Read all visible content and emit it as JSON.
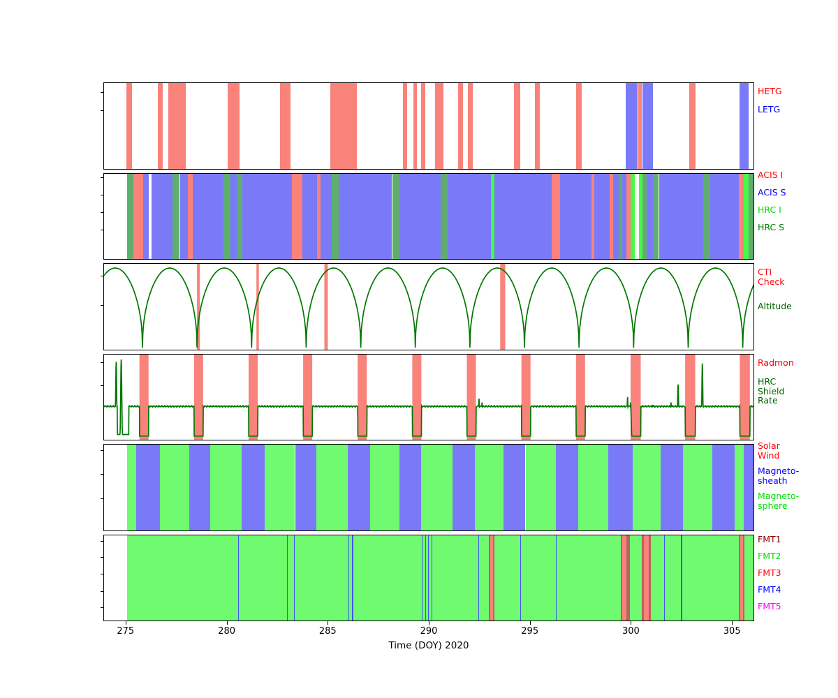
{
  "figure": {
    "xlabel": "Time (DOY) 2020",
    "x_ticks": [
      275,
      280,
      285,
      290,
      295,
      300,
      305
    ],
    "x_range": [
      273.9,
      306.1
    ]
  },
  "chart_data": [
    {
      "type": "area",
      "name": "gratings",
      "legend": [
        {
          "label": "HETG",
          "color": "#ff0000"
        },
        {
          "label": "LETG",
          "color": "#0000ff"
        }
      ],
      "band_colors": {
        "HETG": "#f9827b",
        "LETG": "#7a7af8"
      },
      "bands": [
        [
          275.0,
          275.28,
          "HETG"
        ],
        [
          276.56,
          276.8,
          "HETG"
        ],
        [
          277.08,
          277.95,
          "HETG"
        ],
        [
          280.0,
          280.6,
          "HETG"
        ],
        [
          282.6,
          283.13,
          "HETG"
        ],
        [
          285.1,
          286.4,
          "HETG"
        ],
        [
          288.7,
          288.9,
          "HETG"
        ],
        [
          289.2,
          289.38,
          "HETG"
        ],
        [
          289.6,
          289.78,
          "HETG"
        ],
        [
          290.28,
          290.7,
          "HETG"
        ],
        [
          291.4,
          291.66,
          "HETG"
        ],
        [
          291.9,
          292.14,
          "HETG"
        ],
        [
          294.18,
          294.5,
          "HETG"
        ],
        [
          295.2,
          295.45,
          "HETG"
        ],
        [
          297.27,
          297.55,
          "HETG"
        ],
        [
          302.85,
          303.16,
          "HETG"
        ],
        [
          299.7,
          300.28,
          "LETG"
        ],
        [
          300.33,
          300.5,
          "HETG"
        ],
        [
          300.55,
          301.05,
          "LETG"
        ],
        [
          305.33,
          305.8,
          "LETG"
        ]
      ]
    },
    {
      "type": "area",
      "name": "instruments",
      "legend": [
        {
          "label": "ACIS I",
          "color": "#ff0000"
        },
        {
          "label": "ACIS S",
          "color": "#0000ff"
        },
        {
          "label": "HRC I",
          "color": "#00dd00"
        },
        {
          "label": "HRC S",
          "color": "#008000"
        }
      ],
      "band_colors": {
        "ACIS I": "#f9827b",
        "ACIS S": "#7a7af8",
        "HRC I": "#49f949",
        "HRC S": "#5fae6f"
      },
      "bands": [
        [
          275.05,
          275.35,
          "HRC S"
        ],
        [
          275.35,
          275.85,
          "ACIS I"
        ],
        [
          275.85,
          276.1,
          "ACIS S"
        ],
        [
          276.25,
          277.3,
          "ACIS S"
        ],
        [
          277.3,
          277.65,
          "HRC S"
        ],
        [
          277.65,
          278.05,
          "ACIS S"
        ],
        [
          278.05,
          278.3,
          "ACIS I"
        ],
        [
          278.3,
          279.8,
          "ACIS S"
        ],
        [
          279.8,
          280.15,
          "HRC S"
        ],
        [
          280.15,
          280.45,
          "ACIS S"
        ],
        [
          280.45,
          280.75,
          "HRC S"
        ],
        [
          280.75,
          283.2,
          "ACIS S"
        ],
        [
          283.2,
          283.7,
          "ACIS I"
        ],
        [
          283.7,
          284.45,
          "ACIS S"
        ],
        [
          284.45,
          284.6,
          "ACIS I"
        ],
        [
          284.6,
          285.15,
          "ACIS S"
        ],
        [
          285.15,
          285.5,
          "HRC S"
        ],
        [
          285.5,
          288.15,
          "ACIS S"
        ],
        [
          288.15,
          288.5,
          "HRC S"
        ],
        [
          288.5,
          290.55,
          "ACIS S"
        ],
        [
          290.55,
          290.9,
          "HRC S"
        ],
        [
          290.9,
          293.05,
          "ACIS S"
        ],
        [
          293.05,
          293.2,
          "HRC I"
        ],
        [
          293.2,
          296.05,
          "ACIS S"
        ],
        [
          296.05,
          296.45,
          "ACIS I"
        ],
        [
          296.45,
          298.0,
          "ACIS S"
        ],
        [
          298.0,
          298.15,
          "ACIS I"
        ],
        [
          298.15,
          298.9,
          "ACIS S"
        ],
        [
          298.9,
          299.1,
          "ACIS I"
        ],
        [
          299.1,
          299.35,
          "ACIS S"
        ],
        [
          299.35,
          299.55,
          "HRC S"
        ],
        [
          299.55,
          299.75,
          "ACIS S"
        ],
        [
          299.75,
          299.95,
          "ACIS I"
        ],
        [
          299.95,
          300.15,
          "HRC I"
        ],
        [
          300.35,
          300.55,
          "HRC I"
        ],
        [
          300.55,
          300.75,
          "HRC S"
        ],
        [
          300.75,
          301.05,
          "ACIS S"
        ],
        [
          301.05,
          301.35,
          "HRC S"
        ],
        [
          301.35,
          303.55,
          "ACIS S"
        ],
        [
          303.55,
          303.9,
          "HRC S"
        ],
        [
          303.9,
          305.3,
          "ACIS S"
        ],
        [
          305.3,
          305.55,
          "ACIS I"
        ],
        [
          305.55,
          305.8,
          "HRC I"
        ],
        [
          305.8,
          306.1,
          "HRC S"
        ]
      ]
    },
    {
      "type": "line",
      "name": "orbit-altitude",
      "legend": [
        {
          "label": "CTI\nCheck",
          "color": "#ff0000"
        },
        {
          "label": "Altitude",
          "color": "#006400"
        }
      ],
      "line_color": "#007800",
      "band_color": "#f9827b",
      "perigees": [
        273.1,
        275.8,
        278.5,
        281.2,
        283.9,
        286.6,
        289.3,
        292.0,
        294.7,
        297.4,
        300.1,
        302.8,
        305.5,
        308.2
      ],
      "cti_bands": [
        [
          278.5,
          278.64
        ],
        [
          281.44,
          281.56
        ],
        [
          284.8,
          284.97
        ],
        [
          293.5,
          293.75
        ]
      ]
    },
    {
      "type": "line",
      "name": "radiation",
      "legend": [
        {
          "label": "Radmon",
          "color": "#ff0000"
        },
        {
          "label": "HRC\nShield\nRate",
          "color": "#006400"
        }
      ],
      "line_color": "#007800",
      "band_color": "#f9827b",
      "baseline": 0.4,
      "radmon_bands": [
        [
          275.65,
          276.1
        ],
        [
          278.35,
          278.8
        ],
        [
          281.05,
          281.5
        ],
        [
          283.75,
          284.2
        ],
        [
          286.45,
          286.9
        ],
        [
          289.15,
          289.6
        ],
        [
          291.85,
          292.3
        ],
        [
          294.55,
          295.0
        ],
        [
          297.25,
          297.7
        ],
        [
          299.95,
          300.45
        ],
        [
          302.65,
          303.15
        ],
        [
          305.35,
          305.85
        ]
      ],
      "lows": [
        [
          274.55,
          275.12
        ]
      ],
      "spikes": [
        [
          274.5,
          0.97
        ],
        [
          274.75,
          1.0
        ],
        [
          292.45,
          0.5
        ],
        [
          292.6,
          0.45
        ],
        [
          299.8,
          0.52
        ],
        [
          299.95,
          0.45
        ],
        [
          300.8,
          0.4
        ],
        [
          301.05,
          0.42
        ],
        [
          301.95,
          0.45
        ],
        [
          302.3,
          0.68
        ],
        [
          303.5,
          0.95
        ]
      ]
    },
    {
      "type": "area",
      "name": "orbit-regions",
      "legend": [
        {
          "label": "Solar\nWind",
          "color": "#ff0000"
        },
        {
          "label": "Magneto-\nsheath",
          "color": "#0000ff"
        },
        {
          "label": "Magneto-\nsphere",
          "color": "#00dd00"
        }
      ],
      "band_colors": {
        "Solar Wind": "#f9827b",
        "Magnetosheath": "#7a7af8",
        "Magnetosphere": "#70fa70"
      },
      "bands": [
        [
          275.05,
          275.5,
          "Magnetosphere"
        ],
        [
          275.5,
          276.65,
          "Magnetosheath"
        ],
        [
          276.65,
          278.1,
          "Magnetosphere"
        ],
        [
          278.1,
          279.15,
          "Magnetosheath"
        ],
        [
          279.15,
          280.7,
          "Magnetosphere"
        ],
        [
          280.7,
          281.85,
          "Magnetosheath"
        ],
        [
          281.85,
          283.35,
          "Magnetosphere"
        ],
        [
          283.35,
          284.4,
          "Magnetosheath"
        ],
        [
          284.4,
          285.95,
          "Magnetosphere"
        ],
        [
          285.95,
          287.05,
          "Magnetosheath"
        ],
        [
          287.05,
          288.5,
          "Magnetosphere"
        ],
        [
          288.5,
          289.6,
          "Magnetosheath"
        ],
        [
          289.6,
          291.15,
          "Magnetosphere"
        ],
        [
          291.15,
          292.25,
          "Magnetosheath"
        ],
        [
          292.25,
          293.65,
          "Magnetosphere"
        ],
        [
          293.65,
          294.75,
          "Magnetosheath"
        ],
        [
          294.75,
          296.25,
          "Magnetosphere"
        ],
        [
          296.25,
          297.35,
          "Magnetosheath"
        ],
        [
          297.35,
          298.85,
          "Magnetosphere"
        ],
        [
          298.85,
          300.05,
          "Magnetosheath"
        ],
        [
          300.05,
          301.45,
          "Magnetosphere"
        ],
        [
          301.45,
          302.55,
          "Magnetosheath"
        ],
        [
          302.55,
          304.0,
          "Magnetosphere"
        ],
        [
          304.0,
          305.1,
          "Magnetosheath"
        ],
        [
          305.1,
          305.55,
          "Magnetosphere"
        ],
        [
          305.55,
          306.1,
          "Magnetosheath"
        ]
      ]
    },
    {
      "type": "area",
      "name": "telemetry-format",
      "legend": [
        {
          "label": "FMT1",
          "color": "#8b0000"
        },
        {
          "label": "FMT2",
          "color": "#00dd00"
        },
        {
          "label": "FMT3",
          "color": "#ff0000"
        },
        {
          "label": "FMT4",
          "color": "#0000ff"
        },
        {
          "label": "FMT5",
          "color": "#ff00ff"
        }
      ],
      "band_colors": {
        "FMT1": "#b4665e",
        "FMT2": "#70fa70",
        "FMT3": "#f9827b",
        "FMT4": "#4455ee",
        "FMT5": "#ff66ff"
      },
      "bands": [
        [
          275.05,
          306.1,
          "FMT2"
        ],
        [
          280.54,
          280.58,
          "FMT4"
        ],
        [
          282.95,
          282.99,
          "FMT4"
        ],
        [
          283.28,
          283.32,
          "FMT4"
        ],
        [
          285.98,
          286.02,
          "FMT4"
        ],
        [
          286.18,
          286.22,
          "FMT4"
        ],
        [
          289.62,
          289.66,
          "FMT4"
        ],
        [
          289.8,
          289.84,
          "FMT4"
        ],
        [
          289.93,
          289.97,
          "FMT4"
        ],
        [
          290.1,
          290.14,
          "FMT4"
        ],
        [
          292.43,
          292.47,
          "FMT4"
        ],
        [
          294.5,
          294.54,
          "FMT4"
        ],
        [
          296.25,
          296.29,
          "FMT4"
        ],
        [
          301.6,
          301.64,
          "FMT4"
        ],
        [
          302.45,
          302.49,
          "FMT4"
        ],
        [
          292.95,
          293.2,
          "FMT1"
        ],
        [
          293.0,
          293.15,
          "FMT3"
        ],
        [
          299.45,
          299.9,
          "FMT1"
        ],
        [
          299.55,
          299.75,
          "FMT3"
        ],
        [
          300.5,
          300.95,
          "FMT1"
        ],
        [
          300.6,
          300.85,
          "FMT3"
        ],
        [
          305.3,
          305.6,
          "FMT1"
        ],
        [
          305.38,
          305.52,
          "FMT3"
        ]
      ]
    }
  ]
}
